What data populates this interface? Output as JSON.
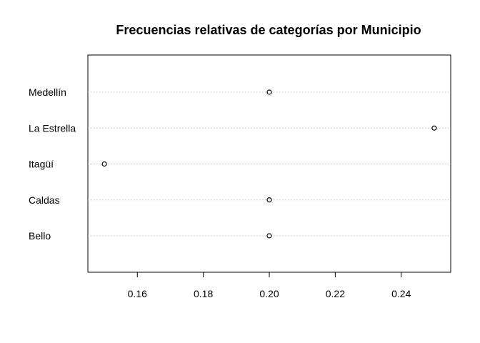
{
  "chart_data": {
    "type": "scatter",
    "subtype": "dotchart",
    "title": "Frecuencias relativas de categorías por Municipio",
    "xlabel": "",
    "ylabel": "",
    "categories": [
      "Bello",
      "Caldas",
      "Itagüí",
      "La Estrella",
      "Medellín"
    ],
    "values": [
      0.2,
      0.2,
      0.15,
      0.25,
      0.2
    ],
    "xlim": [
      0.145,
      0.255
    ],
    "xticks": [
      "0.16",
      "0.18",
      "0.20",
      "0.22",
      "0.24"
    ],
    "xtick_values": [
      0.16,
      0.18,
      0.2,
      0.22,
      0.24
    ],
    "grid": "horizontal-dotted",
    "marker": "open-circle"
  }
}
